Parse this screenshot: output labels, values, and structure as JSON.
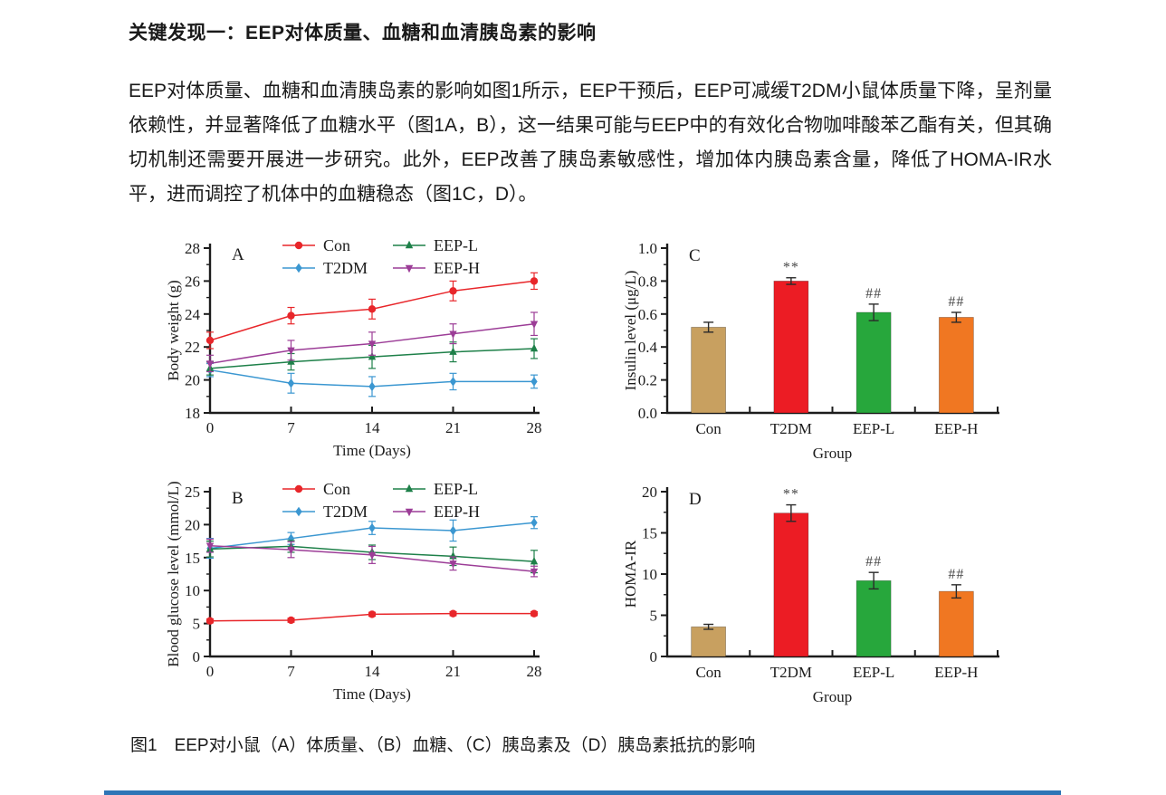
{
  "document": {
    "heading": "关键发现一：EEP对体质量、血糖和血清胰岛素的影响",
    "paragraph": "EEP对体质量、血糖和血清胰岛素的影响如图1所示，EEP干预后，EEP可减缓T2DM小鼠体质量下降，呈剂量依赖性，并显著降低了血糖水平（图1A，B），这一结果可能与EEP中的有效化合物咖啡酸苯乙酯有关，但其确切机制还需要开展进一步研究。此外，EEP改善了胰岛素敏感性，增加体内胰岛素含量，降低了HOMA-IR水平，进而调控了机体中的血糖稳态（图1C，D）。",
    "figure_caption": "图1　EEP对小鼠（A）体质量、（B）血糖、（C）胰岛素及（D）胰岛素抵抗的影响",
    "accent_bar_color": "#2E75B6"
  },
  "chart_data": [
    {
      "id": "A",
      "type": "line",
      "panel_label": "A",
      "x": [
        0,
        7,
        14,
        21,
        28
      ],
      "xticks": [
        "0",
        "7",
        "14",
        "21",
        "28"
      ],
      "xlabel": "Time (Days)",
      "ylabel": "Body weight (g)",
      "ylim": [
        18,
        28
      ],
      "yticks": [
        "18",
        "20",
        "22",
        "24",
        "26",
        "28"
      ],
      "grid": false,
      "legend_position": "top-inside",
      "series": [
        {
          "name": "Con",
          "marker": "circle",
          "color": "#E8262A",
          "values": [
            22.4,
            23.9,
            24.3,
            25.4,
            26.0
          ],
          "errors": [
            0.5,
            0.5,
            0.6,
            0.6,
            0.5
          ]
        },
        {
          "name": "T2DM",
          "marker": "diamond",
          "color": "#3B97D1",
          "values": [
            20.6,
            19.8,
            19.6,
            19.9,
            19.9
          ],
          "errors": [
            0.4,
            0.6,
            0.6,
            0.5,
            0.4
          ]
        },
        {
          "name": "EEP-L",
          "marker": "triangle-up",
          "color": "#1E8049",
          "values": [
            20.7,
            21.1,
            21.4,
            21.7,
            21.9
          ],
          "errors": [
            0.4,
            0.5,
            0.7,
            0.6,
            0.6
          ]
        },
        {
          "name": "EEP-H",
          "marker": "triangle-down",
          "color": "#9C3D97",
          "values": [
            21.0,
            21.8,
            22.2,
            22.8,
            23.4
          ],
          "errors": [
            0.5,
            0.6,
            0.7,
            0.6,
            0.7
          ]
        }
      ]
    },
    {
      "id": "B",
      "type": "line",
      "panel_label": "B",
      "x": [
        0,
        7,
        14,
        21,
        28
      ],
      "xticks": [
        "0",
        "7",
        "14",
        "21",
        "28"
      ],
      "xlabel": "Time (Days)",
      "ylabel": "Blood glucose level (mmol/L)",
      "ylim": [
        0,
        25
      ],
      "yticks": [
        "0",
        "5",
        "10",
        "15",
        "20",
        "25"
      ],
      "grid": false,
      "legend_position": "top-inside",
      "series": [
        {
          "name": "Con",
          "marker": "circle",
          "color": "#E8262A",
          "values": [
            5.4,
            5.5,
            6.4,
            6.5,
            6.5
          ],
          "errors": [
            0.3,
            0.3,
            0.3,
            0.3,
            0.3
          ]
        },
        {
          "name": "T2DM",
          "marker": "diamond",
          "color": "#3B97D1",
          "values": [
            16.4,
            17.9,
            19.5,
            19.1,
            20.3
          ],
          "errors": [
            1.5,
            0.9,
            1.0,
            1.6,
            0.9
          ]
        },
        {
          "name": "EEP-L",
          "marker": "triangle-up",
          "color": "#1E8049",
          "values": [
            16.3,
            16.7,
            15.8,
            15.2,
            14.4
          ],
          "errors": [
            1.2,
            0.9,
            1.1,
            1.4,
            1.7
          ]
        },
        {
          "name": "EEP-H",
          "marker": "triangle-down",
          "color": "#9C3D97",
          "values": [
            16.8,
            16.2,
            15.4,
            14.1,
            12.9
          ],
          "errors": [
            1.0,
            1.2,
            1.3,
            1.0,
            0.8
          ]
        }
      ]
    },
    {
      "id": "C",
      "type": "bar",
      "panel_label": "C",
      "categories": [
        "Con",
        "T2DM",
        "EEP-L",
        "EEP-H"
      ],
      "values": [
        0.52,
        0.8,
        0.61,
        0.58
      ],
      "errors": [
        0.03,
        0.02,
        0.05,
        0.03
      ],
      "annotations": [
        "",
        "**",
        "##",
        "##"
      ],
      "bar_colors": [
        "#C8A060",
        "#EC1C24",
        "#27A73C",
        "#F07722"
      ],
      "xlabel": "Group",
      "ylabel": "Insulin level (μg/L)",
      "ylim": [
        0.0,
        1.0
      ],
      "yticks": [
        "0.0",
        "0.2",
        "0.4",
        "0.6",
        "0.8",
        "1.0"
      ],
      "grid": false
    },
    {
      "id": "D",
      "type": "bar",
      "panel_label": "D",
      "categories": [
        "Con",
        "T2DM",
        "EEP-L",
        "EEP-H"
      ],
      "values": [
        3.6,
        17.4,
        9.2,
        7.9
      ],
      "errors": [
        0.3,
        1.0,
        1.0,
        0.8
      ],
      "annotations": [
        "",
        "**",
        "##",
        "##"
      ],
      "bar_colors": [
        "#C8A060",
        "#EC1C24",
        "#27A73C",
        "#F07722"
      ],
      "xlabel": "Group",
      "ylabel": "HOMA-IR",
      "ylim": [
        0,
        20
      ],
      "yticks": [
        "0",
        "5",
        "10",
        "15",
        "20"
      ],
      "grid": false
    }
  ]
}
